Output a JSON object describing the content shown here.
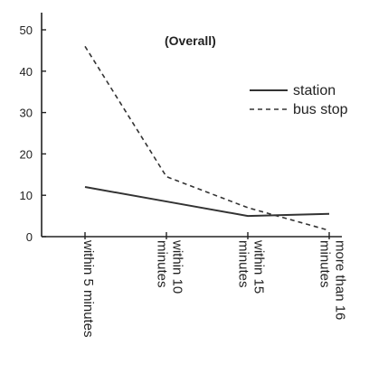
{
  "chart_data": {
    "type": "line",
    "title": "(Overall)",
    "categories": [
      "within 5 minutes",
      "within 10 minutes",
      "within 15 minutes",
      "more than 16 minutes"
    ],
    "category_lines": [
      [
        "within 5 minutes"
      ],
      [
        "within 10",
        "minutes"
      ],
      [
        "within 15",
        "minutes"
      ],
      [
        "more than 16",
        "minutes"
      ]
    ],
    "ylim": [
      0,
      50
    ],
    "yticks": [
      "0",
      "10",
      "20",
      "30",
      "40",
      "50"
    ],
    "legend_position": "right",
    "series": [
      {
        "name": "station",
        "values": [
          12,
          8.5,
          5,
          5.5
        ],
        "style": "solid",
        "color": "#333333"
      },
      {
        "name": "bus stop",
        "values": [
          46,
          14.5,
          7,
          1.5
        ],
        "style": "dashed",
        "color": "#333333"
      }
    ]
  }
}
